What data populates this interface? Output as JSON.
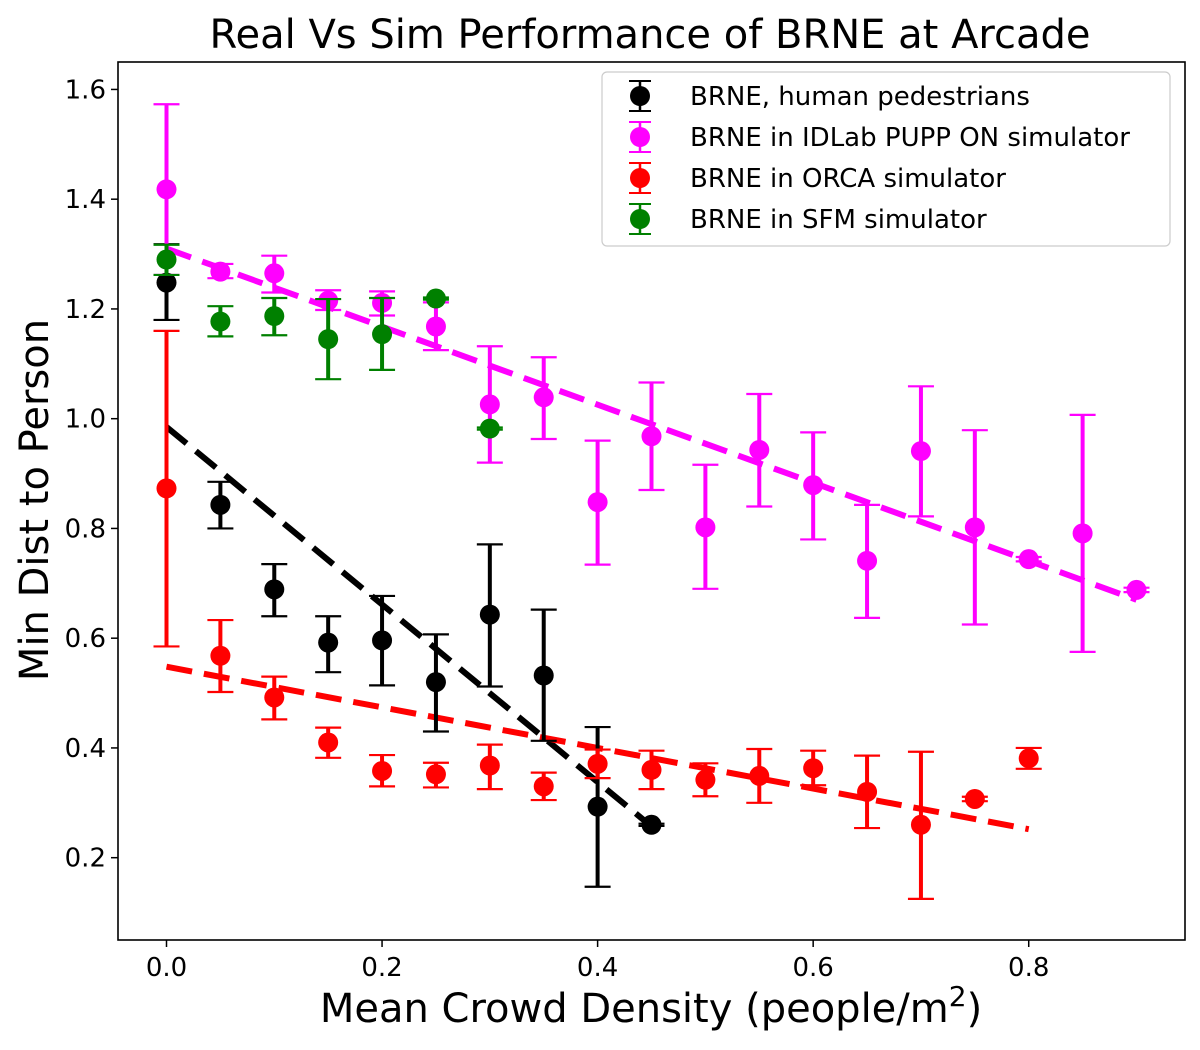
{
  "chart_data": {
    "type": "scatter",
    "title": "Real Vs Sim Performance of BRNE at Arcade",
    "xlabel": "Mean Crowd Density (people/m²)",
    "ylabel": "Min Dist to Person",
    "xlim": [
      -0.045,
      0.945
    ],
    "ylim": [
      0.05,
      1.65
    ],
    "xticks": [
      0.0,
      0.2,
      0.4,
      0.6,
      0.8
    ],
    "xtick_labels": [
      "0.0",
      "0.2",
      "0.4",
      "0.6",
      "0.8"
    ],
    "yticks": [
      0.2,
      0.4,
      0.6,
      0.8,
      1.0,
      1.2,
      1.4,
      1.6
    ],
    "ytick_labels": [
      "0.2",
      "0.4",
      "0.6",
      "0.8",
      "1.0",
      "1.2",
      "1.4",
      "1.6"
    ],
    "grid": false,
    "legend_position": "top-right",
    "series": [
      {
        "name": "BRNE, human pedestrians",
        "color": "#000000",
        "points": [
          {
            "x": 0.0,
            "y": 1.248,
            "err_low": 1.18,
            "err_high": 1.318
          },
          {
            "x": 0.05,
            "y": 0.843,
            "err_low": 0.8,
            "err_high": 0.885
          },
          {
            "x": 0.1,
            "y": 0.689,
            "err_low": 0.64,
            "err_high": 0.735
          },
          {
            "x": 0.15,
            "y": 0.592,
            "err_low": 0.538,
            "err_high": 0.64
          },
          {
            "x": 0.2,
            "y": 0.596,
            "err_low": 0.514,
            "err_high": 0.677
          },
          {
            "x": 0.25,
            "y": 0.52,
            "err_low": 0.43,
            "err_high": 0.607
          },
          {
            "x": 0.3,
            "y": 0.643,
            "err_low": 0.512,
            "err_high": 0.771
          },
          {
            "x": 0.35,
            "y": 0.532,
            "err_low": 0.413,
            "err_high": 0.652
          },
          {
            "x": 0.4,
            "y": 0.293,
            "err_low": 0.147,
            "err_high": 0.438
          },
          {
            "x": 0.45,
            "y": 0.26,
            "err_low": 0.258,
            "err_high": 0.262
          }
        ],
        "trend": {
          "x": [
            0.0,
            0.45
          ],
          "y": [
            0.985,
            0.257
          ]
        }
      },
      {
        "name": "BRNE in IDLab PUPP ON simulator",
        "color": "#ff00ff",
        "points": [
          {
            "x": 0.0,
            "y": 1.418,
            "err_low": 1.262,
            "err_high": 1.573
          },
          {
            "x": 0.05,
            "y": 1.268,
            "err_low": 1.256,
            "err_high": 1.282
          },
          {
            "x": 0.1,
            "y": 1.265,
            "err_low": 1.23,
            "err_high": 1.297
          },
          {
            "x": 0.15,
            "y": 1.215,
            "err_low": 1.198,
            "err_high": 1.234
          },
          {
            "x": 0.2,
            "y": 1.211,
            "err_low": 1.188,
            "err_high": 1.232
          },
          {
            "x": 0.25,
            "y": 1.168,
            "err_low": 1.125,
            "err_high": 1.212
          },
          {
            "x": 0.3,
            "y": 1.026,
            "err_low": 0.92,
            "err_high": 1.132
          },
          {
            "x": 0.35,
            "y": 1.039,
            "err_low": 0.963,
            "err_high": 1.112
          },
          {
            "x": 0.4,
            "y": 0.848,
            "err_low": 0.734,
            "err_high": 0.96
          },
          {
            "x": 0.45,
            "y": 0.968,
            "err_low": 0.87,
            "err_high": 1.066
          },
          {
            "x": 0.5,
            "y": 0.802,
            "err_low": 0.69,
            "err_high": 0.916
          },
          {
            "x": 0.55,
            "y": 0.943,
            "err_low": 0.84,
            "err_high": 1.045
          },
          {
            "x": 0.6,
            "y": 0.879,
            "err_low": 0.78,
            "err_high": 0.975
          },
          {
            "x": 0.65,
            "y": 0.741,
            "err_low": 0.637,
            "err_high": 0.843
          },
          {
            "x": 0.7,
            "y": 0.941,
            "err_low": 0.822,
            "err_high": 1.059
          },
          {
            "x": 0.75,
            "y": 0.802,
            "err_low": 0.625,
            "err_high": 0.979
          },
          {
            "x": 0.8,
            "y": 0.744,
            "err_low": 0.74,
            "err_high": 0.748
          },
          {
            "x": 0.85,
            "y": 0.791,
            "err_low": 0.575,
            "err_high": 1.007
          },
          {
            "x": 0.9,
            "y": 0.688,
            "err_low": 0.684,
            "err_high": 0.692
          }
        ],
        "trend": {
          "x": [
            0.0,
            0.9
          ],
          "y": [
            1.31,
            0.67
          ]
        }
      },
      {
        "name": "BRNE in ORCA simulator",
        "color": "#ff0000",
        "points": [
          {
            "x": 0.0,
            "y": 0.873,
            "err_low": 0.585,
            "err_high": 1.16
          },
          {
            "x": 0.05,
            "y": 0.568,
            "err_low": 0.502,
            "err_high": 0.633
          },
          {
            "x": 0.1,
            "y": 0.492,
            "err_low": 0.452,
            "err_high": 0.53
          },
          {
            "x": 0.15,
            "y": 0.41,
            "err_low": 0.382,
            "err_high": 0.437
          },
          {
            "x": 0.2,
            "y": 0.358,
            "err_low": 0.33,
            "err_high": 0.387
          },
          {
            "x": 0.25,
            "y": 0.352,
            "err_low": 0.328,
            "err_high": 0.373
          },
          {
            "x": 0.3,
            "y": 0.368,
            "err_low": 0.325,
            "err_high": 0.406
          },
          {
            "x": 0.35,
            "y": 0.33,
            "err_low": 0.305,
            "err_high": 0.355
          },
          {
            "x": 0.4,
            "y": 0.371,
            "err_low": 0.345,
            "err_high": 0.397
          },
          {
            "x": 0.45,
            "y": 0.36,
            "err_low": 0.325,
            "err_high": 0.395
          },
          {
            "x": 0.5,
            "y": 0.342,
            "err_low": 0.312,
            "err_high": 0.372
          },
          {
            "x": 0.55,
            "y": 0.349,
            "err_low": 0.3,
            "err_high": 0.398
          },
          {
            "x": 0.6,
            "y": 0.363,
            "err_low": 0.332,
            "err_high": 0.395
          },
          {
            "x": 0.65,
            "y": 0.32,
            "err_low": 0.254,
            "err_high": 0.386
          },
          {
            "x": 0.7,
            "y": 0.26,
            "err_low": 0.125,
            "err_high": 0.393
          },
          {
            "x": 0.75,
            "y": 0.307,
            "err_low": 0.303,
            "err_high": 0.311
          },
          {
            "x": 0.8,
            "y": 0.381,
            "err_low": 0.362,
            "err_high": 0.4
          }
        ],
        "trend": {
          "x": [
            0.0,
            0.8
          ],
          "y": [
            0.548,
            0.252
          ]
        }
      },
      {
        "name": "BRNE in SFM simulator",
        "color": "#008000",
        "points": [
          {
            "x": 0.0,
            "y": 1.29,
            "err_low": 1.262,
            "err_high": 1.317
          },
          {
            "x": 0.05,
            "y": 1.177,
            "err_low": 1.15,
            "err_high": 1.205
          },
          {
            "x": 0.1,
            "y": 1.187,
            "err_low": 1.152,
            "err_high": 1.22
          },
          {
            "x": 0.15,
            "y": 1.145,
            "err_low": 1.072,
            "err_high": 1.218
          },
          {
            "x": 0.2,
            "y": 1.154,
            "err_low": 1.089,
            "err_high": 1.22
          },
          {
            "x": 0.25,
            "y": 1.219,
            "err_low": 1.217,
            "err_high": 1.221
          },
          {
            "x": 0.3,
            "y": 0.982,
            "err_low": 0.98,
            "err_high": 0.984
          }
        ]
      }
    ]
  }
}
